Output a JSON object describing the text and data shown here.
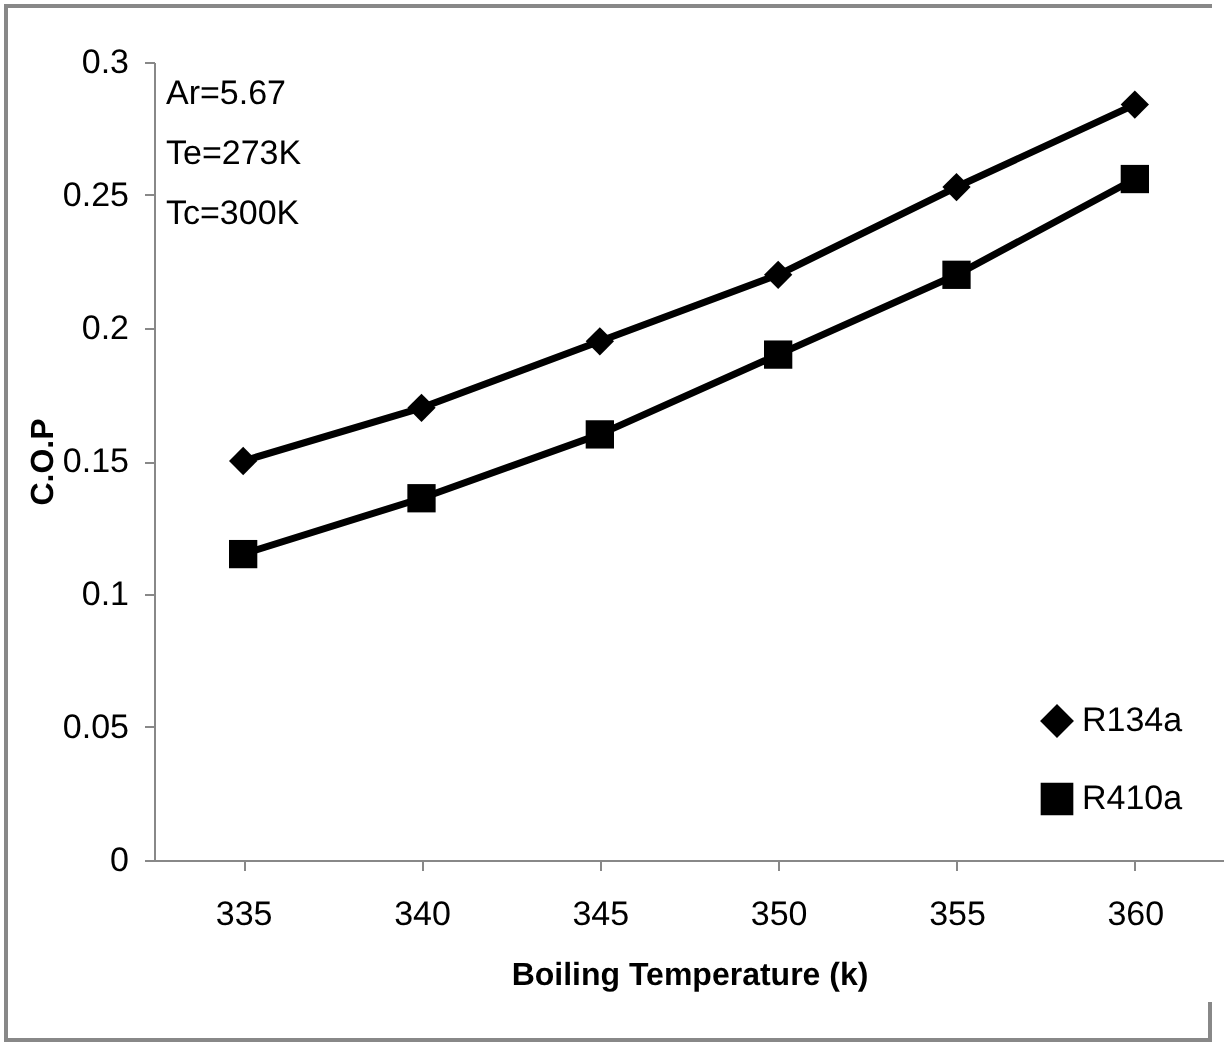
{
  "chart_data": {
    "type": "line",
    "xlabel": "Boiling Temperature (k)",
    "ylabel": "C.O.P",
    "categories": [
      "335",
      "340",
      "345",
      "350",
      "355",
      "360"
    ],
    "series": [
      {
        "name": "R134a",
        "color": "#000000",
        "marker": "diamond",
        "values": [
          0.15,
          0.17,
          0.195,
          0.22,
          0.253,
          0.284
        ]
      },
      {
        "name": "R410a",
        "color": "#000000",
        "marker": "square",
        "values": [
          0.115,
          0.136,
          0.16,
          0.19,
          0.22,
          0.256
        ]
      }
    ],
    "ylim": [
      0,
      0.3
    ],
    "yticks": [
      0,
      0.05,
      0.1,
      0.15,
      0.2,
      0.25,
      0.3
    ],
    "grid": false,
    "legend": "bottom right",
    "line_style": "solid",
    "annotations": [
      "Ar=5.67",
      "Te=273K",
      "Tc=300K"
    ]
  }
}
